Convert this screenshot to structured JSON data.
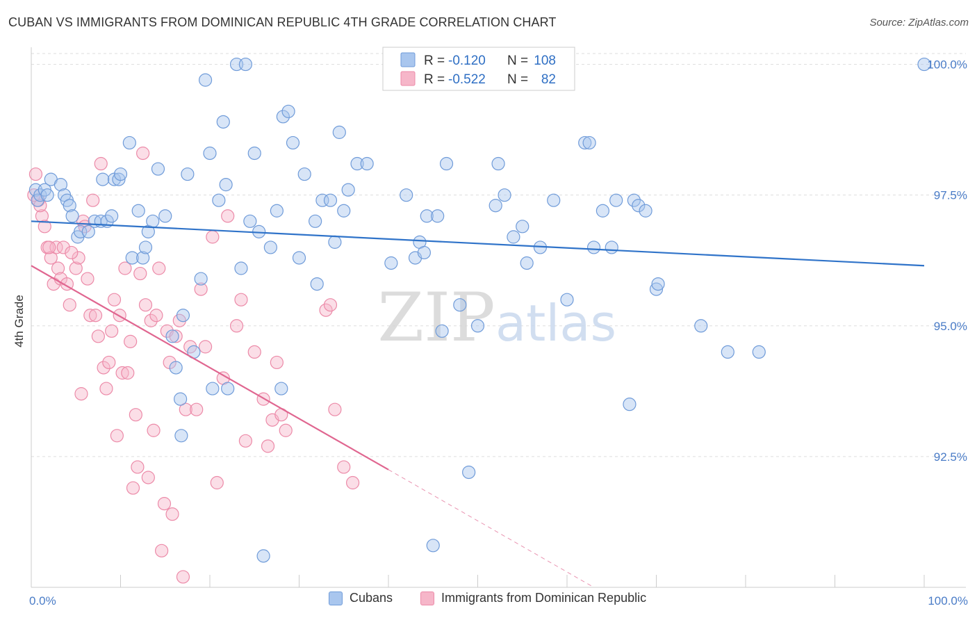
{
  "header": {
    "title": "CUBAN VS IMMIGRANTS FROM DOMINICAN REPUBLIC 4TH GRADE CORRELATION CHART",
    "source": "Source: ZipAtlas.com"
  },
  "watermark": {
    "zip": "ZIP",
    "atlas": "atlas"
  },
  "legend_top": {
    "rows": [
      {
        "r_label": "R = ",
        "r_value": "-0.120",
        "n_label": "N = ",
        "n_value": "108"
      },
      {
        "r_label": "R = ",
        "r_value": "-0.522",
        "n_label": "N = ",
        "n_value": "82"
      }
    ]
  },
  "legend_bottom": {
    "series1": "Cubans",
    "series2": "Immigrants from Dominican Republic"
  },
  "colors": {
    "blue_fill": "#a9c6ee",
    "blue_stroke": "#6f9bd9",
    "blue_line": "#2f73c9",
    "pink_fill": "#f6b6c9",
    "pink_stroke": "#ec8aa8",
    "pink_line": "#e06690",
    "tick_label": "#4a7cc7",
    "grid": "#dddddd"
  },
  "chart_data": {
    "type": "scatter",
    "title": "CUBAN VS IMMIGRANTS FROM DOMINICAN REPUBLIC 4TH GRADE CORRELATION CHART",
    "xlabel": "",
    "ylabel": "4th Grade",
    "xlim": [
      0,
      100
    ],
    "ylim": [
      90.0,
      100.3
    ],
    "x_tick_labels": [
      "0.0%",
      "100.0%"
    ],
    "y_ticks": [
      92.5,
      95.0,
      97.5,
      100.0
    ],
    "y_tick_labels": [
      "92.5%",
      "95.0%",
      "97.5%",
      "100.0%"
    ],
    "grid": true,
    "series": [
      {
        "name": "Cubans",
        "r": -0.12,
        "n": 108,
        "trend": [
          [
            0,
            97.0
          ],
          [
            100,
            96.15
          ]
        ],
        "points": [
          [
            0.5,
            97.6
          ],
          [
            0.7,
            97.4
          ],
          [
            1.0,
            97.5
          ],
          [
            1.5,
            97.6
          ],
          [
            1.8,
            97.5
          ],
          [
            2.2,
            97.8
          ],
          [
            3.3,
            97.7
          ],
          [
            3.7,
            97.5
          ],
          [
            4.0,
            97.4
          ],
          [
            4.3,
            97.3
          ],
          [
            4.6,
            97.1
          ],
          [
            5.2,
            96.7
          ],
          [
            5.5,
            96.8
          ],
          [
            6.4,
            96.8
          ],
          [
            7.1,
            97.0
          ],
          [
            7.8,
            97.0
          ],
          [
            8.0,
            97.8
          ],
          [
            8.5,
            97.0
          ],
          [
            9.0,
            97.1
          ],
          [
            9.3,
            97.8
          ],
          [
            9.8,
            97.8
          ],
          [
            10.0,
            97.9
          ],
          [
            11.0,
            98.5
          ],
          [
            11.3,
            96.3
          ],
          [
            12.0,
            97.2
          ],
          [
            12.5,
            96.3
          ],
          [
            12.8,
            96.5
          ],
          [
            13.1,
            96.8
          ],
          [
            13.6,
            97.0
          ],
          [
            14.2,
            98.0
          ],
          [
            15.0,
            97.1
          ],
          [
            15.8,
            94.8
          ],
          [
            16.2,
            94.2
          ],
          [
            16.7,
            93.6
          ],
          [
            16.8,
            92.9
          ],
          [
            17.0,
            95.2
          ],
          [
            17.5,
            97.9
          ],
          [
            18.2,
            94.5
          ],
          [
            19.0,
            95.9
          ],
          [
            19.5,
            99.7
          ],
          [
            20.0,
            98.3
          ],
          [
            20.3,
            93.8
          ],
          [
            21.0,
            97.4
          ],
          [
            21.5,
            98.9
          ],
          [
            21.8,
            97.7
          ],
          [
            22.0,
            93.8
          ],
          [
            23.0,
            100.0
          ],
          [
            23.5,
            96.1
          ],
          [
            24.0,
            100.0
          ],
          [
            24.5,
            97.0
          ],
          [
            25.0,
            98.3
          ],
          [
            25.5,
            96.8
          ],
          [
            26.0,
            90.6
          ],
          [
            26.8,
            96.5
          ],
          [
            27.5,
            97.2
          ],
          [
            28.0,
            93.8
          ],
          [
            28.2,
            99.0
          ],
          [
            28.8,
            99.1
          ],
          [
            29.3,
            98.5
          ],
          [
            30.0,
            96.3
          ],
          [
            30.6,
            97.9
          ],
          [
            31.8,
            97.0
          ],
          [
            32.0,
            95.8
          ],
          [
            32.6,
            97.4
          ],
          [
            33.5,
            97.4
          ],
          [
            34.0,
            96.6
          ],
          [
            34.5,
            98.7
          ],
          [
            35.0,
            97.2
          ],
          [
            35.5,
            97.6
          ],
          [
            36.5,
            98.1
          ],
          [
            37.6,
            98.1
          ],
          [
            40.3,
            96.2
          ],
          [
            42.0,
            97.5
          ],
          [
            43.0,
            96.3
          ],
          [
            43.5,
            96.6
          ],
          [
            44.0,
            96.4
          ],
          [
            44.3,
            97.1
          ],
          [
            45.0,
            90.8
          ],
          [
            45.5,
            97.1
          ],
          [
            46.0,
            94.9
          ],
          [
            46.5,
            98.1
          ],
          [
            48.0,
            95.4
          ],
          [
            49.0,
            92.2
          ],
          [
            50.0,
            95.0
          ],
          [
            52.0,
            97.3
          ],
          [
            52.3,
            98.1
          ],
          [
            53.0,
            97.5
          ],
          [
            54.0,
            96.7
          ],
          [
            55.0,
            96.9
          ],
          [
            55.5,
            96.2
          ],
          [
            57.0,
            96.5
          ],
          [
            58.5,
            97.4
          ],
          [
            60.0,
            95.5
          ],
          [
            62.0,
            98.5
          ],
          [
            62.5,
            98.5
          ],
          [
            63.0,
            96.5
          ],
          [
            64.0,
            97.2
          ],
          [
            65.0,
            96.5
          ],
          [
            65.5,
            97.4
          ],
          [
            67.0,
            93.5
          ],
          [
            67.5,
            97.4
          ],
          [
            68.0,
            97.3
          ],
          [
            68.8,
            97.2
          ],
          [
            70.0,
            95.7
          ],
          [
            70.2,
            95.8
          ],
          [
            75.0,
            95.0
          ],
          [
            78.0,
            94.5
          ],
          [
            81.5,
            94.5
          ],
          [
            100.0,
            100.0
          ]
        ]
      },
      {
        "name": "Immigrants from Dominican Republic",
        "r": -0.522,
        "n": 82,
        "trend": [
          [
            0,
            96.15
          ],
          [
            40,
            92.25
          ]
        ],
        "trend_dashed": [
          [
            40,
            92.25
          ],
          [
            63,
            90.0
          ]
        ],
        "points": [
          [
            0.5,
            97.9
          ],
          [
            0.8,
            97.4
          ],
          [
            1.2,
            97.1
          ],
          [
            1.5,
            96.9
          ],
          [
            1.8,
            96.5
          ],
          [
            2.2,
            96.3
          ],
          [
            2.5,
            95.8
          ],
          [
            2.8,
            96.5
          ],
          [
            3.0,
            96.1
          ],
          [
            3.3,
            95.9
          ],
          [
            3.6,
            96.5
          ],
          [
            4.0,
            95.8
          ],
          [
            4.3,
            95.4
          ],
          [
            5.0,
            96.1
          ],
          [
            5.3,
            96.3
          ],
          [
            5.6,
            93.7
          ],
          [
            5.8,
            97.0
          ],
          [
            6.0,
            96.9
          ],
          [
            6.3,
            95.9
          ],
          [
            6.6,
            95.2
          ],
          [
            6.9,
            97.4
          ],
          [
            7.2,
            95.2
          ],
          [
            7.5,
            94.8
          ],
          [
            7.8,
            98.1
          ],
          [
            8.1,
            94.2
          ],
          [
            8.4,
            93.8
          ],
          [
            8.7,
            94.3
          ],
          [
            9.0,
            94.9
          ],
          [
            9.3,
            95.5
          ],
          [
            9.6,
            92.9
          ],
          [
            9.9,
            95.2
          ],
          [
            10.2,
            94.1
          ],
          [
            10.5,
            96.1
          ],
          [
            10.8,
            94.1
          ],
          [
            11.1,
            94.7
          ],
          [
            11.4,
            91.9
          ],
          [
            11.7,
            93.3
          ],
          [
            11.9,
            92.3
          ],
          [
            12.2,
            96.0
          ],
          [
            12.5,
            98.3
          ],
          [
            12.8,
            95.4
          ],
          [
            13.1,
            92.1
          ],
          [
            13.4,
            95.1
          ],
          [
            13.7,
            93.0
          ],
          [
            14.0,
            95.2
          ],
          [
            14.3,
            96.1
          ],
          [
            14.6,
            90.7
          ],
          [
            14.9,
            91.6
          ],
          [
            15.2,
            94.9
          ],
          [
            15.5,
            94.3
          ],
          [
            15.8,
            91.4
          ],
          [
            16.2,
            94.8
          ],
          [
            16.6,
            95.1
          ],
          [
            17.0,
            90.2
          ],
          [
            17.3,
            93.4
          ],
          [
            17.8,
            94.6
          ],
          [
            18.5,
            93.4
          ],
          [
            19.0,
            95.7
          ],
          [
            19.5,
            94.6
          ],
          [
            20.3,
            96.7
          ],
          [
            20.8,
            92.0
          ],
          [
            21.5,
            94.0
          ],
          [
            22.0,
            97.1
          ],
          [
            23.0,
            95.0
          ],
          [
            23.5,
            95.5
          ],
          [
            24.0,
            92.8
          ],
          [
            25.0,
            94.5
          ],
          [
            26.0,
            93.6
          ],
          [
            26.5,
            92.7
          ],
          [
            27.0,
            93.2
          ],
          [
            27.5,
            94.3
          ],
          [
            28.0,
            93.3
          ],
          [
            28.5,
            93.0
          ],
          [
            33.0,
            95.3
          ],
          [
            33.5,
            95.4
          ],
          [
            34.0,
            93.4
          ],
          [
            35.0,
            92.3
          ],
          [
            36.0,
            92.0
          ],
          [
            0.3,
            97.5
          ],
          [
            1.0,
            97.3
          ],
          [
            2.0,
            96.5
          ],
          [
            4.5,
            96.4
          ]
        ]
      }
    ]
  }
}
